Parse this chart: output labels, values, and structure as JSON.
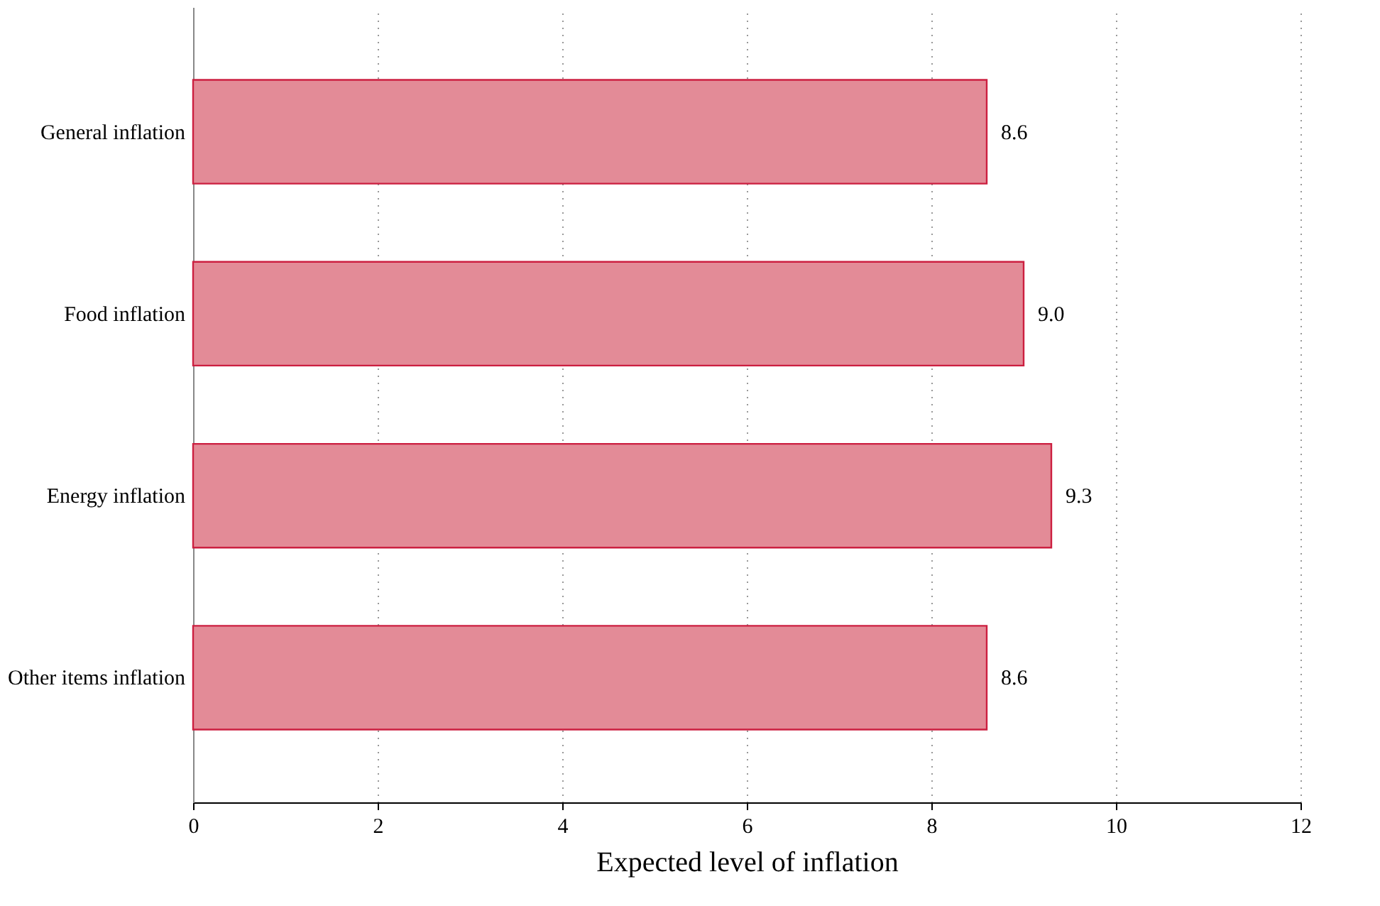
{
  "chart_data": {
    "type": "bar",
    "orientation": "horizontal",
    "categories": [
      "General inflation",
      "Food inflation",
      "Energy inflation",
      "Other items inflation"
    ],
    "values": [
      8.6,
      9.0,
      9.3,
      8.6
    ],
    "color": "#e38b97",
    "xlabel": "Expected level of inflation",
    "xlim": [
      0,
      12
    ],
    "xticks": [
      0,
      2,
      4,
      6,
      8,
      10,
      12
    ],
    "value_labels": [
      "8.6",
      "9.0",
      "9.3",
      "8.6"
    ],
    "grid": "x"
  }
}
